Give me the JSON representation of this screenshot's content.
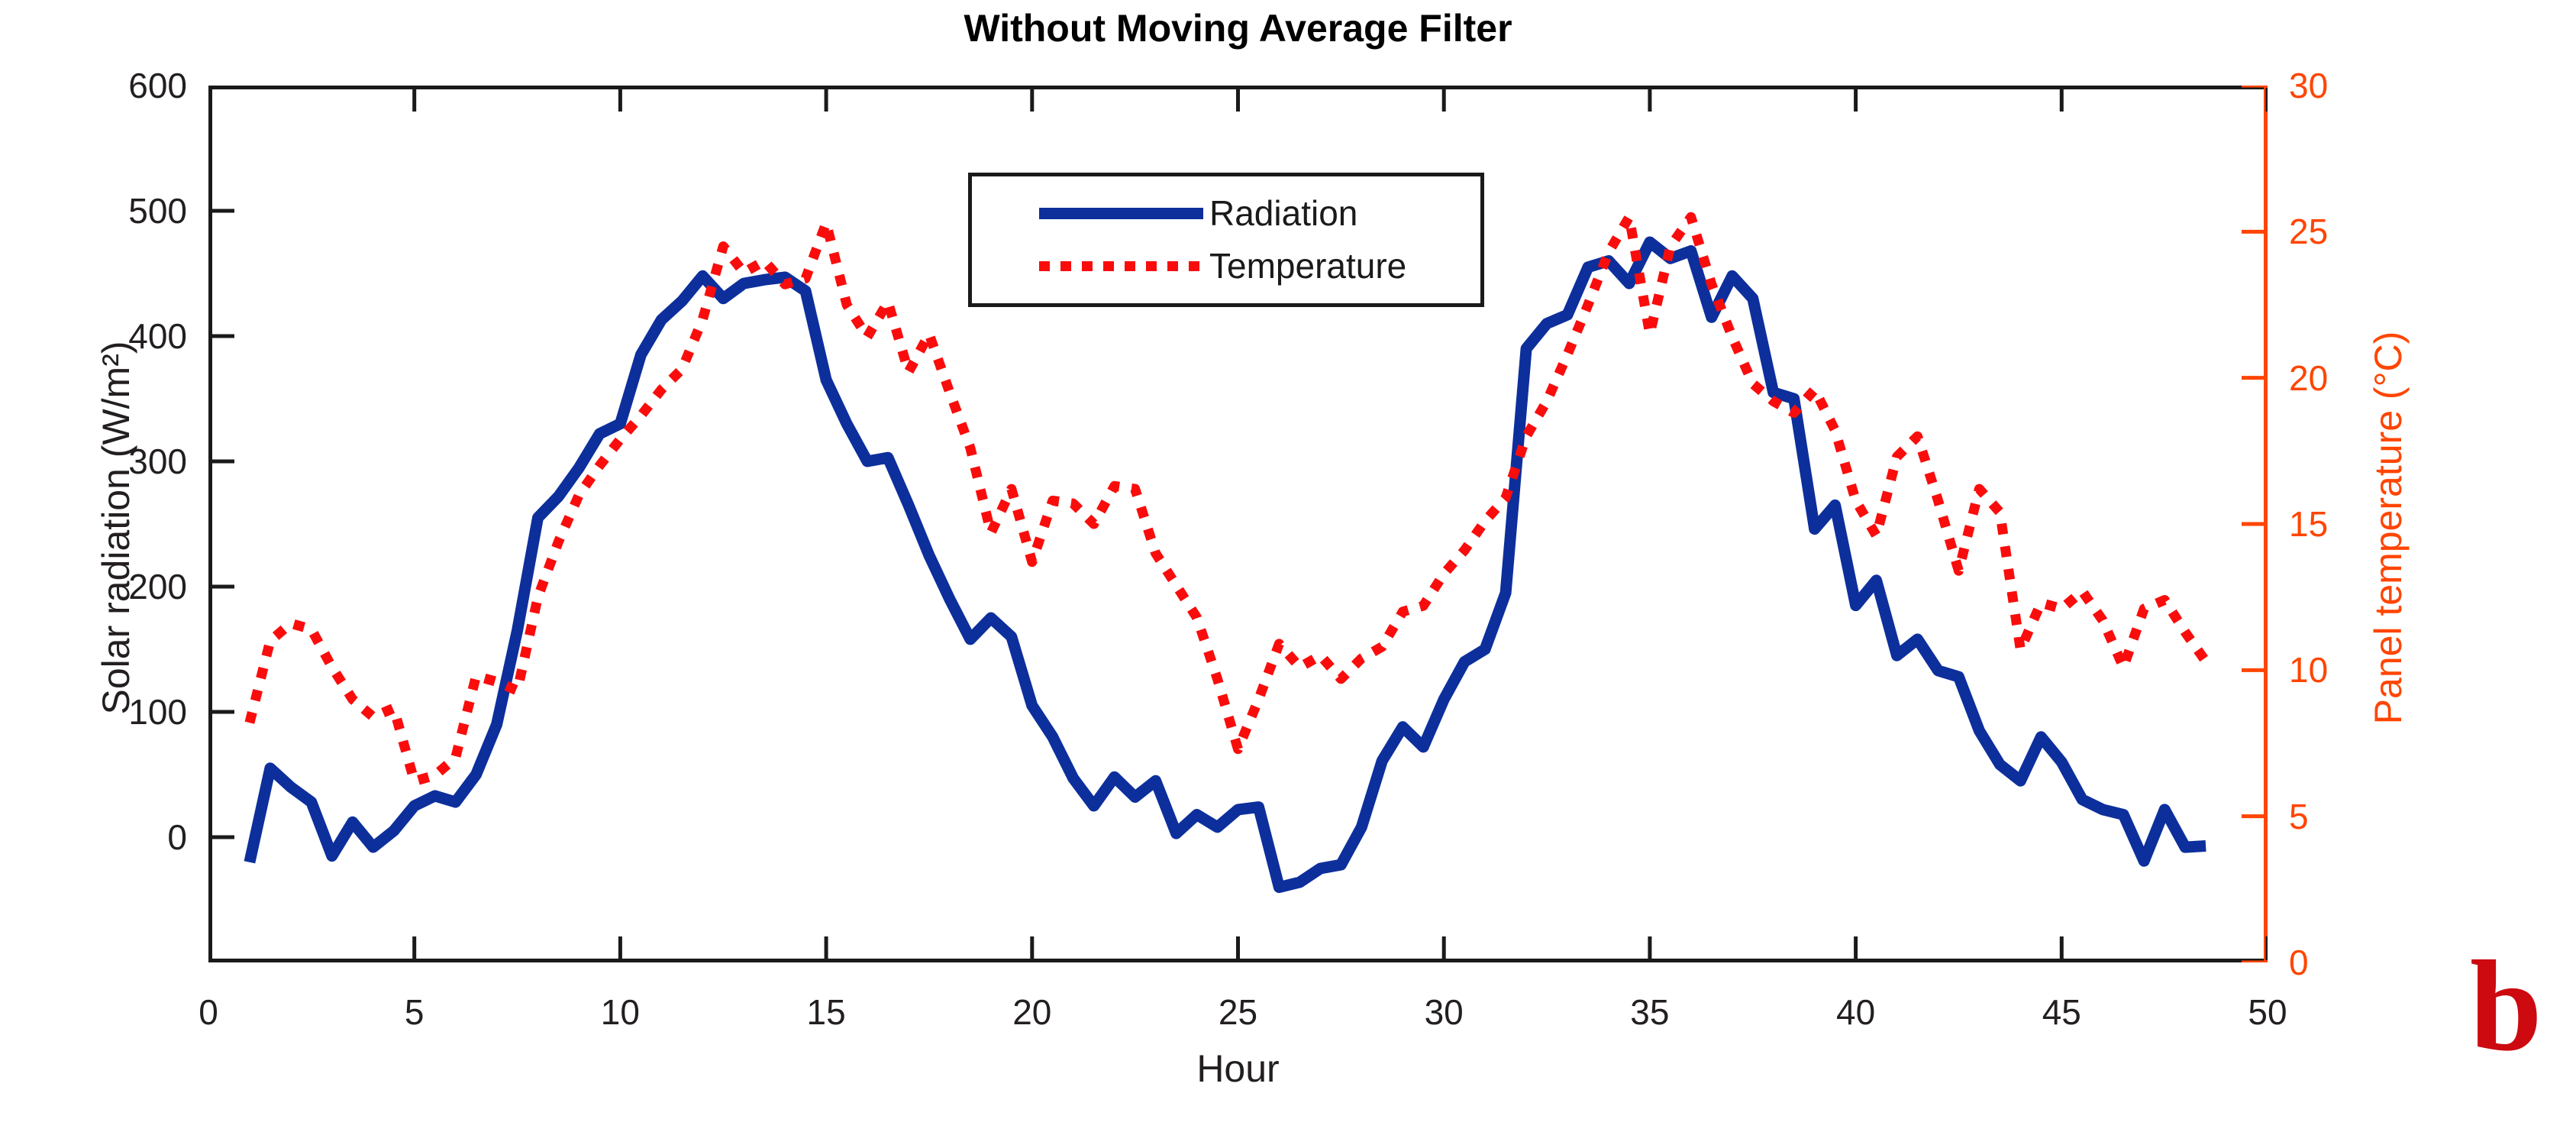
{
  "figure": {
    "annotation_letter": "b",
    "annotation_color": "#cc0a10",
    "background_color": "#ffffff"
  },
  "chart_data": {
    "type": "line",
    "title": "Without Moving Average Filter",
    "xlabel": "Hour",
    "ylabel_left": "Solar radiation (W/m²)",
    "ylabel_right": "Panel temperature (°C)",
    "xlim": [
      0,
      50
    ],
    "ylim_left": [
      -100,
      600
    ],
    "ylim_right": [
      0,
      30
    ],
    "xticks": [
      0,
      5,
      10,
      15,
      20,
      25,
      30,
      35,
      40,
      45,
      50
    ],
    "yticks_left": [
      0,
      100,
      200,
      300,
      400,
      500,
      600
    ],
    "yticks_right": [
      0,
      5,
      10,
      15,
      20,
      25,
      30
    ],
    "grid": false,
    "legend_position": "upper center-left inside",
    "axis_color_left": "#231f20",
    "axis_color_right": "#ff4500",
    "frame_color": "#1a1a1a",
    "x": [
      1,
      1.5,
      2,
      2.5,
      3,
      3.5,
      4,
      4.5,
      5,
      5.5,
      6,
      6.5,
      7,
      7.5,
      8,
      8.5,
      9,
      9.5,
      10,
      10.5,
      11,
      11.5,
      12,
      12.5,
      13,
      13.5,
      14,
      14.5,
      15,
      15.5,
      16,
      16.5,
      17,
      17.5,
      18,
      18.5,
      19,
      19.5,
      20,
      20.5,
      21,
      21.5,
      22,
      22.5,
      23,
      23.5,
      24,
      24.5,
      25,
      25.5,
      26,
      26.5,
      27,
      27.5,
      28,
      28.5,
      29,
      29.5,
      30,
      30.5,
      31,
      31.5,
      32,
      32.5,
      33,
      33.5,
      34,
      34.5,
      35,
      35.5,
      36,
      36.5,
      37,
      37.5,
      38,
      38.5,
      39,
      39.5,
      40,
      40.5,
      41,
      41.5,
      42,
      42.5,
      43,
      43.5,
      44,
      44.5,
      45,
      45.5,
      46,
      46.5,
      47,
      47.5,
      48,
      48.5
    ],
    "series": [
      {
        "name": "Radiation",
        "axis": "left",
        "color": "#0d2f9c",
        "style": "solid",
        "line_width": 15,
        "values": [
          -20,
          55,
          40,
          28,
          -15,
          12,
          -8,
          5,
          25,
          33,
          28,
          50,
          90,
          165,
          255,
          272,
          295,
          322,
          330,
          385,
          413,
          428,
          448,
          430,
          442,
          445,
          447,
          436,
          365,
          330,
          300,
          303,
          265,
          225,
          190,
          158,
          175,
          160,
          105,
          80,
          47,
          25,
          48,
          32,
          45,
          3,
          18,
          8,
          22,
          24,
          -40,
          -36,
          -25,
          -22,
          8,
          61,
          88,
          72,
          110,
          140,
          150,
          195,
          390,
          410,
          417,
          455,
          460,
          442,
          475,
          462,
          468,
          415,
          448,
          430,
          355,
          350,
          246,
          265,
          185,
          205,
          145,
          158,
          133,
          128,
          85,
          58,
          45,
          80,
          60,
          30,
          22,
          18,
          -19,
          22,
          -8,
          -7
        ]
      },
      {
        "name": "Temperature",
        "axis": "right",
        "color": "#f90d0c",
        "style": "dotted",
        "line_width": 13,
        "values": [
          8.2,
          11,
          11.6,
          11.4,
          10.1,
          9,
          8.4,
          8.7,
          6.2,
          6.4,
          7,
          9.8,
          9.6,
          9.3,
          12.5,
          14.4,
          16,
          17,
          17.9,
          18.7,
          19.6,
          20.3,
          22,
          24.5,
          23.6,
          24,
          23.2,
          23.4,
          25.3,
          22.5,
          21.4,
          22.6,
          20.2,
          21.5,
          19.5,
          17.6,
          14.7,
          16.2,
          13.7,
          15.8,
          15.7,
          15,
          16.3,
          16.2,
          14,
          12.9,
          11.8,
          9.7,
          7.3,
          9,
          10.9,
          10.1,
          10.5,
          9.7,
          10.4,
          10.8,
          12,
          12.2,
          13.3,
          14.1,
          15.1,
          15.9,
          18,
          19.2,
          20.8,
          22.5,
          24.3,
          25.5,
          21.5,
          24.5,
          25.5,
          23.2,
          21.4,
          19.8,
          19.2,
          18.8,
          19.6,
          18.2,
          15.8,
          14.6,
          17.3,
          18,
          15.8,
          13.4,
          16.2,
          15.4,
          10.7,
          12.3,
          12.1,
          12.7,
          11.7,
          10.1,
          12.1,
          12.4,
          11.3,
          10.3
        ]
      }
    ]
  }
}
